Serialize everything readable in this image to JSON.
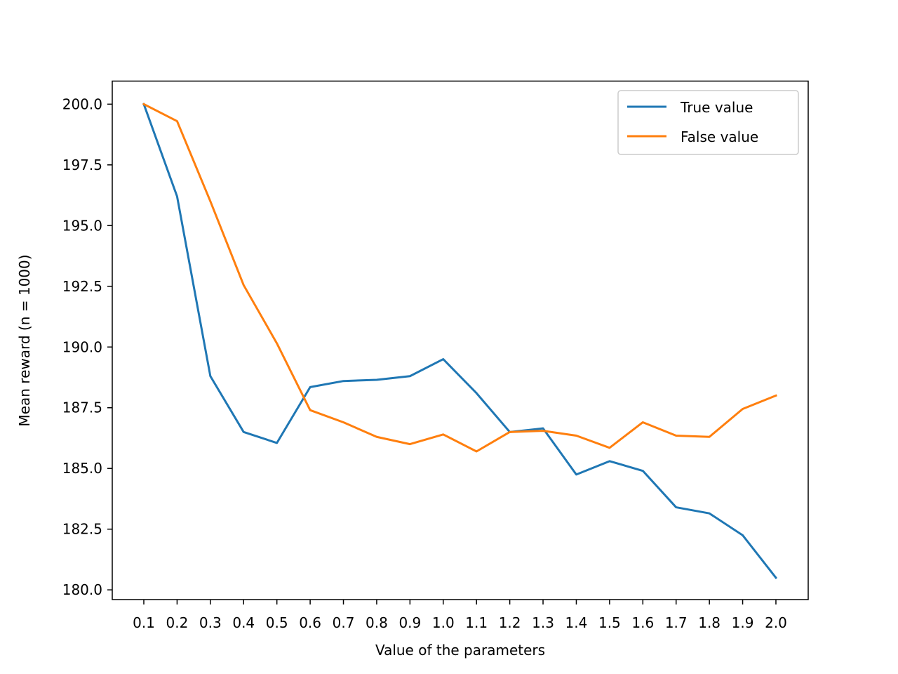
{
  "chart_data": {
    "type": "line",
    "title": "",
    "xlabel": "Value of the parameters",
    "ylabel": "Mean reward (n = 1000)",
    "x": [
      "0.1",
      "0.2",
      "0.3",
      "0.4",
      "0.5",
      "0.6",
      "0.7",
      "0.8",
      "0.9",
      "1.0",
      "1.1",
      "1.2",
      "1.3",
      "1.4",
      "1.5",
      "1.6",
      "1.7",
      "1.8",
      "1.9",
      "2.0"
    ],
    "ylim": [
      179.6,
      200.95
    ],
    "yticks": [
      "180.0",
      "182.5",
      "185.0",
      "187.5",
      "190.0",
      "192.5",
      "195.0",
      "197.5",
      "200.0"
    ],
    "grid": false,
    "legend_position": "top-right",
    "series": [
      {
        "name": "True value",
        "color": "#1f77b4",
        "values": [
          200.0,
          196.2,
          188.8,
          186.5,
          186.05,
          188.35,
          188.6,
          188.65,
          188.8,
          189.5,
          188.1,
          186.5,
          186.65,
          184.75,
          185.3,
          184.9,
          183.4,
          183.15,
          182.25,
          180.5
        ]
      },
      {
        "name": "False value",
        "color": "#ff7f0e",
        "values": [
          200.0,
          199.3,
          196.0,
          192.55,
          190.15,
          187.4,
          186.9,
          186.3,
          186.0,
          186.4,
          185.7,
          186.5,
          186.55,
          186.35,
          185.85,
          186.9,
          186.35,
          186.3,
          187.45,
          188.0
        ]
      }
    ]
  }
}
